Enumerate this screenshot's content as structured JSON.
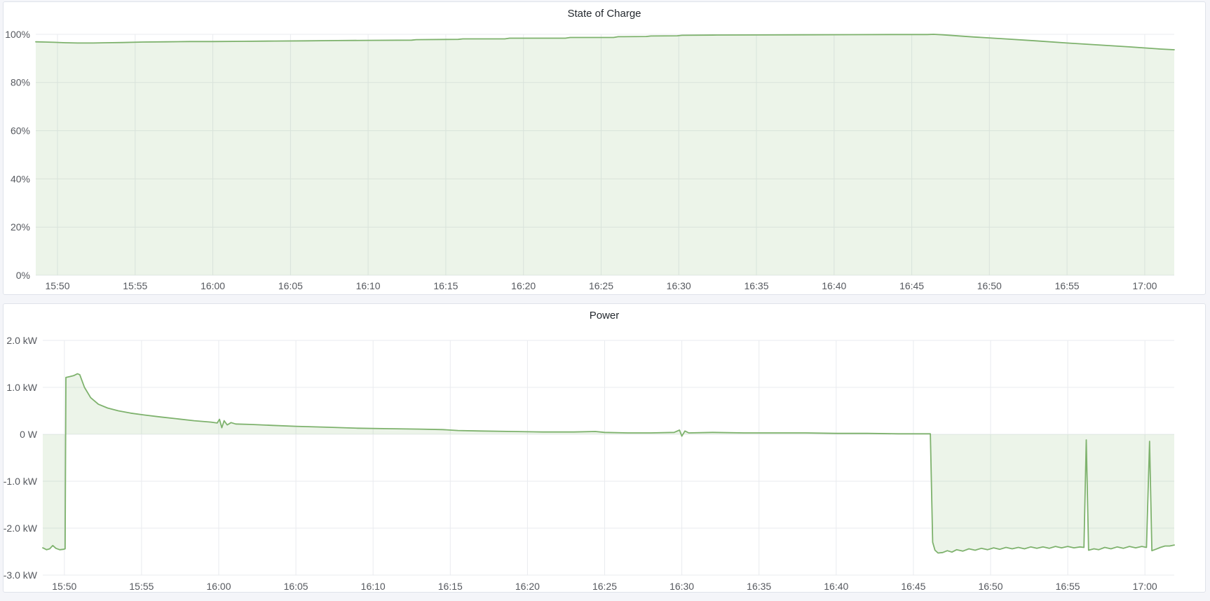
{
  "page": {
    "background_color": "#f4f5f9",
    "panel_background": "#ffffff",
    "accent_green": "#7eb26d"
  },
  "panels": [
    {
      "title": "State of Charge",
      "chart_data": {
        "type": "area",
        "title": "State of Charge",
        "x_unit": "minutes after 15:00",
        "y_unit": "%",
        "x_range": [
          48.6,
          121.9
        ],
        "y_range": [
          0,
          100
        ],
        "baseline": 0,
        "grid": true,
        "legend": "none",
        "line_color": "#7eb26d",
        "fill_color": "rgba(126,178,109,0.15)",
        "x_ticks": [
          {
            "t": 50,
            "label": "15:50"
          },
          {
            "t": 55,
            "label": "15:55"
          },
          {
            "t": 60,
            "label": "16:00"
          },
          {
            "t": 65,
            "label": "16:05"
          },
          {
            "t": 70,
            "label": "16:10"
          },
          {
            "t": 75,
            "label": "16:15"
          },
          {
            "t": 80,
            "label": "16:20"
          },
          {
            "t": 85,
            "label": "16:25"
          },
          {
            "t": 90,
            "label": "16:30"
          },
          {
            "t": 95,
            "label": "16:35"
          },
          {
            "t": 100,
            "label": "16:40"
          },
          {
            "t": 105,
            "label": "16:45"
          },
          {
            "t": 110,
            "label": "16:50"
          },
          {
            "t": 115,
            "label": "16:55"
          },
          {
            "t": 120,
            "label": "17:00"
          }
        ],
        "y_ticks": [
          {
            "v": 100,
            "label": "100%"
          },
          {
            "v": 80,
            "label": "80%"
          },
          {
            "v": 60,
            "label": "60%"
          },
          {
            "v": 40,
            "label": "40%"
          },
          {
            "v": 20,
            "label": "20%"
          },
          {
            "v": 0,
            "label": "0%"
          }
        ],
        "series": [
          {
            "name": "State of Charge",
            "points": [
              [
                48.6,
                96.9
              ],
              [
                49.2,
                96.8
              ],
              [
                49.8,
                96.7
              ],
              [
                50.5,
                96.5
              ],
              [
                51.3,
                96.4
              ],
              [
                52.3,
                96.4
              ],
              [
                53.2,
                96.5
              ],
              [
                54.2,
                96.6
              ],
              [
                55.5,
                96.8
              ],
              [
                57,
                96.9
              ],
              [
                58.5,
                97.0
              ],
              [
                60,
                97.0
              ],
              [
                62,
                97.1
              ],
              [
                64,
                97.2
              ],
              [
                66,
                97.3
              ],
              [
                68,
                97.4
              ],
              [
                70,
                97.5
              ],
              [
                72.8,
                97.6
              ],
              [
                73.1,
                97.8
              ],
              [
                75.8,
                97.9
              ],
              [
                76.1,
                98.1
              ],
              [
                78.8,
                98.1
              ],
              [
                79.1,
                98.4
              ],
              [
                82.7,
                98.4
              ],
              [
                83.0,
                98.7
              ],
              [
                85.8,
                98.7
              ],
              [
                86.1,
                99.0
              ],
              [
                87.9,
                99.1
              ],
              [
                88.2,
                99.3
              ],
              [
                89.9,
                99.4
              ],
              [
                90.2,
                99.6
              ],
              [
                92.5,
                99.7
              ],
              [
                95,
                99.75
              ],
              [
                98,
                99.8
              ],
              [
                101,
                99.85
              ],
              [
                104,
                99.9
              ],
              [
                106.0,
                99.9
              ],
              [
                106.4,
                100.0
              ],
              [
                107,
                99.8
              ],
              [
                109,
                98.9
              ],
              [
                111,
                98.1
              ],
              [
                113,
                97.3
              ],
              [
                115,
                96.4
              ],
              [
                117,
                95.6
              ],
              [
                119,
                94.8
              ],
              [
                121,
                93.9
              ],
              [
                121.9,
                93.6
              ]
            ]
          }
        ]
      }
    },
    {
      "title": "Power",
      "chart_data": {
        "type": "area",
        "title": "Power",
        "x_unit": "minutes after 15:00",
        "y_unit": "kW",
        "x_range": [
          48.6,
          121.9
        ],
        "y_range": [
          -3,
          2
        ],
        "baseline": 0,
        "grid": true,
        "legend": "none",
        "line_color": "#7eb26d",
        "fill_color": "rgba(126,178,109,0.15)",
        "x_ticks": [
          {
            "t": 50,
            "label": "15:50"
          },
          {
            "t": 55,
            "label": "15:55"
          },
          {
            "t": 60,
            "label": "16:00"
          },
          {
            "t": 65,
            "label": "16:05"
          },
          {
            "t": 70,
            "label": "16:10"
          },
          {
            "t": 75,
            "label": "16:15"
          },
          {
            "t": 80,
            "label": "16:20"
          },
          {
            "t": 85,
            "label": "16:25"
          },
          {
            "t": 90,
            "label": "16:30"
          },
          {
            "t": 95,
            "label": "16:35"
          },
          {
            "t": 100,
            "label": "16:40"
          },
          {
            "t": 105,
            "label": "16:45"
          },
          {
            "t": 110,
            "label": "16:50"
          },
          {
            "t": 115,
            "label": "16:55"
          },
          {
            "t": 120,
            "label": "17:00"
          }
        ],
        "y_ticks": [
          {
            "v": 2,
            "label": "2.0 kW"
          },
          {
            "v": 1,
            "label": "1.0 kW"
          },
          {
            "v": 0,
            "label": "0 W"
          },
          {
            "v": -1,
            "label": "-1.0 kW"
          },
          {
            "v": -2,
            "label": "-2.0 kW"
          },
          {
            "v": -3,
            "label": "-3.0 kW"
          }
        ],
        "series": [
          {
            "name": "Power",
            "points": [
              [
                48.6,
                -2.42
              ],
              [
                48.85,
                -2.46
              ],
              [
                49.05,
                -2.44
              ],
              [
                49.25,
                -2.37
              ],
              [
                49.45,
                -2.43
              ],
              [
                49.7,
                -2.46
              ],
              [
                49.95,
                -2.45
              ],
              [
                50.05,
                -2.44
              ],
              [
                50.1,
                1.21
              ],
              [
                50.35,
                1.23
              ],
              [
                50.6,
                1.25
              ],
              [
                50.85,
                1.29
              ],
              [
                51.0,
                1.27
              ],
              [
                51.3,
                1.0
              ],
              [
                51.7,
                0.78
              ],
              [
                52.2,
                0.64
              ],
              [
                52.8,
                0.56
              ],
              [
                53.5,
                0.5
              ],
              [
                54.3,
                0.45
              ],
              [
                55.2,
                0.41
              ],
              [
                56.2,
                0.37
              ],
              [
                57.3,
                0.33
              ],
              [
                58.4,
                0.29
              ],
              [
                59.5,
                0.26
              ],
              [
                59.9,
                0.24
              ],
              [
                60.05,
                0.32
              ],
              [
                60.2,
                0.14
              ],
              [
                60.35,
                0.29
              ],
              [
                60.55,
                0.2
              ],
              [
                60.8,
                0.25
              ],
              [
                61.1,
                0.22
              ],
              [
                62,
                0.21
              ],
              [
                63.5,
                0.19
              ],
              [
                65,
                0.17
              ],
              [
                67,
                0.15
              ],
              [
                69,
                0.13
              ],
              [
                71,
                0.12
              ],
              [
                73,
                0.11
              ],
              [
                74.5,
                0.1
              ],
              [
                75.5,
                0.08
              ],
              [
                77,
                0.07
              ],
              [
                79,
                0.06
              ],
              [
                81,
                0.05
              ],
              [
                83,
                0.05
              ],
              [
                84.4,
                0.06
              ],
              [
                85.0,
                0.04
              ],
              [
                86.5,
                0.03
              ],
              [
                88,
                0.03
              ],
              [
                89.5,
                0.04
              ],
              [
                89.85,
                0.09
              ],
              [
                90.0,
                -0.04
              ],
              [
                90.2,
                0.07
              ],
              [
                90.45,
                0.03
              ],
              [
                92,
                0.04
              ],
              [
                94,
                0.03
              ],
              [
                96,
                0.03
              ],
              [
                98,
                0.03
              ],
              [
                100,
                0.02
              ],
              [
                102,
                0.02
              ],
              [
                104,
                0.01
              ],
              [
                105.5,
                0.01
              ],
              [
                106.1,
                0.01
              ],
              [
                106.25,
                -2.3
              ],
              [
                106.4,
                -2.47
              ],
              [
                106.6,
                -2.53
              ],
              [
                106.9,
                -2.52
              ],
              [
                107.2,
                -2.48
              ],
              [
                107.5,
                -2.51
              ],
              [
                107.8,
                -2.46
              ],
              [
                108.2,
                -2.49
              ],
              [
                108.6,
                -2.44
              ],
              [
                109.0,
                -2.47
              ],
              [
                109.4,
                -2.43
              ],
              [
                109.8,
                -2.46
              ],
              [
                110.2,
                -2.42
              ],
              [
                110.6,
                -2.45
              ],
              [
                111.0,
                -2.41
              ],
              [
                111.4,
                -2.44
              ],
              [
                111.8,
                -2.41
              ],
              [
                112.2,
                -2.44
              ],
              [
                112.6,
                -2.4
              ],
              [
                113.0,
                -2.43
              ],
              [
                113.4,
                -2.4
              ],
              [
                113.8,
                -2.43
              ],
              [
                114.2,
                -2.39
              ],
              [
                114.6,
                -2.42
              ],
              [
                115.0,
                -2.39
              ],
              [
                115.4,
                -2.42
              ],
              [
                115.8,
                -2.4
              ],
              [
                116.05,
                -2.41
              ],
              [
                116.2,
                -0.12
              ],
              [
                116.35,
                -2.47
              ],
              [
                116.7,
                -2.44
              ],
              [
                117.0,
                -2.46
              ],
              [
                117.4,
                -2.41
              ],
              [
                117.8,
                -2.44
              ],
              [
                118.2,
                -2.4
              ],
              [
                118.6,
                -2.43
              ],
              [
                119.0,
                -2.39
              ],
              [
                119.4,
                -2.42
              ],
              [
                119.8,
                -2.39
              ],
              [
                120.1,
                -2.41
              ],
              [
                120.3,
                -0.15
              ],
              [
                120.45,
                -2.48
              ],
              [
                120.7,
                -2.45
              ],
              [
                121.0,
                -2.41
              ],
              [
                121.3,
                -2.38
              ],
              [
                121.6,
                -2.38
              ],
              [
                121.9,
                -2.36
              ]
            ]
          }
        ]
      }
    }
  ]
}
